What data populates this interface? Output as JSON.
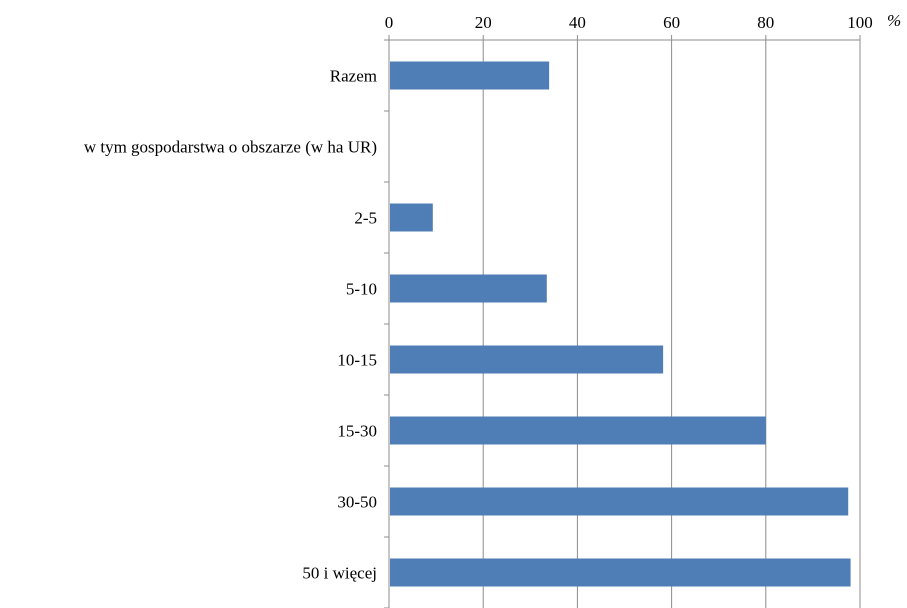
{
  "chart_data": {
    "type": "bar",
    "orientation": "horizontal",
    "categories": [
      "Razem",
      "w tym gospodarstwa o obszarze (w ha UR)",
      "2-5",
      "5-10",
      "10-15",
      "15-30",
      "30-50",
      "50 i więcej"
    ],
    "values": [
      34,
      null,
      9.3,
      33.5,
      58.2,
      80,
      97.5,
      98
    ],
    "xlim": [
      0,
      100
    ],
    "x_ticks": [
      "0",
      "20",
      "40",
      "60",
      "80",
      "100"
    ],
    "x_unit": "%",
    "x_axis_position": "top",
    "grid": "vertical",
    "bar_color": "#4f7db5",
    "title": "",
    "xlabel": "",
    "ylabel": ""
  }
}
